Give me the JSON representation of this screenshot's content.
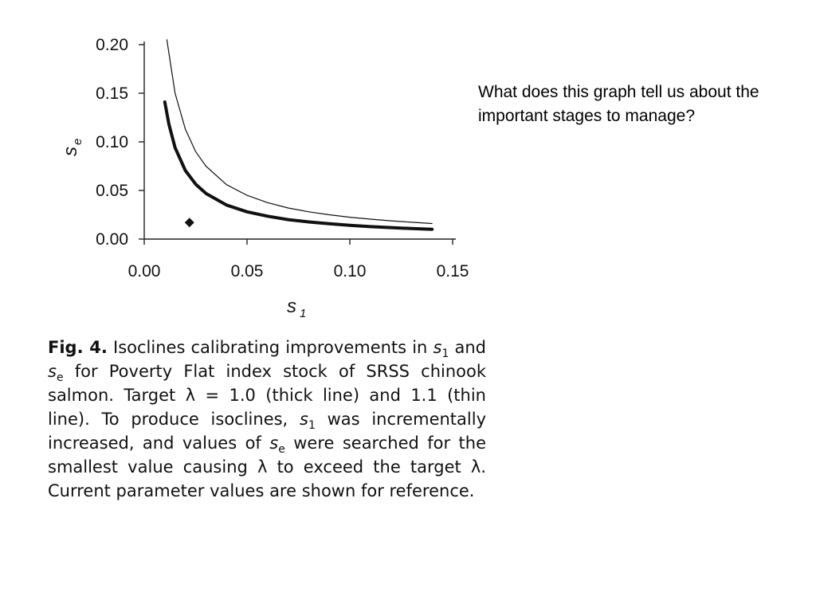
{
  "question": "What does this graph tell us about the important stages to manage?",
  "caption": {
    "label": "Fig. 4.",
    "t1": " Isoclines calibrating improvements in ",
    "v1": "s",
    "v1_sub": "1",
    "t2": " and ",
    "v2": "s",
    "v2_sub": "e",
    "t3": " for Poverty Flat index stock of SRSS chinook salmon. Target λ = 1.0 (thick line) and 1.1 (thin line). To produce isoclines, ",
    "v3": "s",
    "v3_sub": "1",
    "t4": " was incrementally increased, and values of ",
    "v4": "s",
    "v4_sub": "e",
    "t5": " were searched for the smallest value causing λ to exceed the target λ. Current parameter values are shown for reference."
  },
  "chart_data": {
    "type": "line",
    "xlabel": "s",
    "xlabel_sub": "1",
    "ylabel": "s",
    "ylabel_sub": "e",
    "xlim": [
      0.0,
      0.15
    ],
    "ylim": [
      0.0,
      0.2
    ],
    "x_ticks": [
      "0.00",
      "0.05",
      "0.10",
      "0.15"
    ],
    "y_ticks": [
      "0.00",
      "0.05",
      "0.10",
      "0.15",
      "0.20"
    ],
    "x_tick_values": [
      0.0,
      0.05,
      0.1,
      0.15
    ],
    "y_tick_values": [
      0.0,
      0.05,
      0.1,
      0.15,
      0.2
    ],
    "series": [
      {
        "style": "thin",
        "x": [
          0.011,
          0.015,
          0.02,
          0.025,
          0.03,
          0.04,
          0.05,
          0.06,
          0.07,
          0.08,
          0.09,
          0.1,
          0.11,
          0.12,
          0.13,
          0.14
        ],
        "y": [
          0.205,
          0.15,
          0.113,
          0.09,
          0.075,
          0.056,
          0.045,
          0.0375,
          0.032,
          0.028,
          0.025,
          0.0225,
          0.0205,
          0.0188,
          0.0173,
          0.016
        ]
      },
      {
        "style": "thick",
        "x": [
          0.01,
          0.012,
          0.015,
          0.02,
          0.025,
          0.03,
          0.04,
          0.05,
          0.06,
          0.07,
          0.08,
          0.09,
          0.1,
          0.11,
          0.12,
          0.13,
          0.14
        ],
        "y": [
          0.141,
          0.118,
          0.094,
          0.0705,
          0.0565,
          0.047,
          0.035,
          0.028,
          0.0235,
          0.02,
          0.0176,
          0.0157,
          0.0141,
          0.0128,
          0.0118,
          0.0108,
          0.0101
        ]
      }
    ],
    "points": [
      {
        "label": "current parameter values",
        "x": 0.022,
        "y": 0.017
      }
    ],
    "grid": false,
    "legend": "none"
  }
}
